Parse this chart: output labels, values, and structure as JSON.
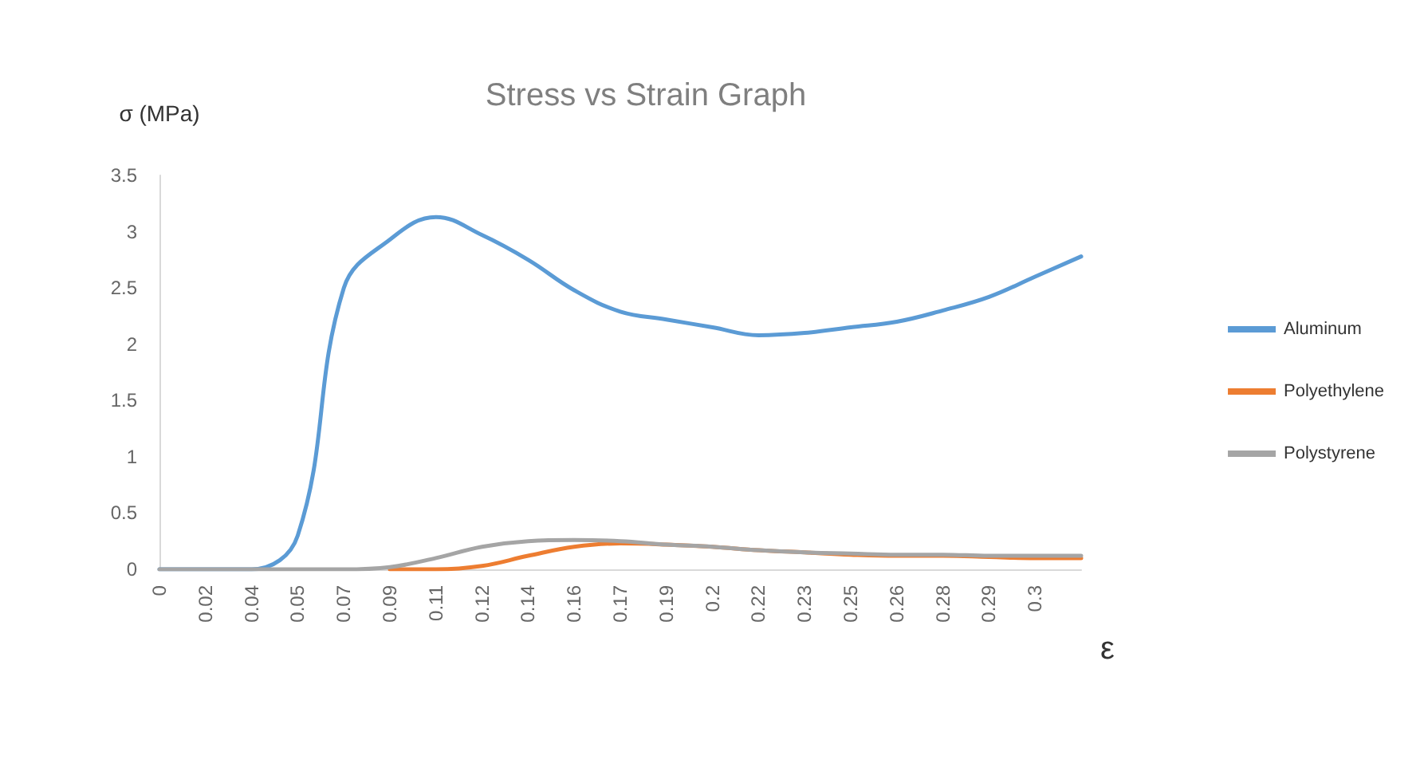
{
  "chart_data": {
    "type": "line",
    "title": "Stress vs Strain Graph",
    "ylabel": "σ (MPa)",
    "xlabel": "ε",
    "categories": [
      "0",
      "0.02",
      "0.04",
      "0.05",
      "0.07",
      "0.09",
      "0.11",
      "0.12",
      "0.14",
      "0.16",
      "0.17",
      "0.19",
      "0.2",
      "0.22",
      "0.23",
      "0.25",
      "0.26",
      "0.28",
      "0.29",
      "0.3",
      null
    ],
    "series": [
      {
        "name": "Aluminum",
        "color": "#5b9bd5",
        "values": [
          0,
          0,
          0,
          0.3,
          2.5,
          2.93,
          3.13,
          2.97,
          2.75,
          2.48,
          2.29,
          2.22,
          2.15,
          2.08,
          2.1,
          2.15,
          2.2,
          2.3,
          2.42,
          2.6,
          2.78
        ]
      },
      {
        "name": "Polyethylene",
        "color": "#ed7d31",
        "values": [
          null,
          null,
          null,
          null,
          null,
          0,
          0,
          0.03,
          0.12,
          0.2,
          0.23,
          0.22,
          0.2,
          0.17,
          0.15,
          0.13,
          0.12,
          0.12,
          0.11,
          0.1,
          0.1
        ]
      },
      {
        "name": "Polystyrene",
        "color": "#a5a5a5",
        "values": [
          0,
          0,
          0,
          0,
          0,
          0.02,
          0.1,
          0.2,
          0.25,
          0.26,
          0.25,
          0.22,
          0.2,
          0.17,
          0.15,
          0.14,
          0.13,
          0.13,
          0.12,
          0.12,
          0.12
        ]
      }
    ],
    "ylim": [
      0,
      3.5
    ],
    "yticks": [
      0,
      0.5,
      1,
      1.5,
      2,
      2.5,
      3,
      3.5
    ],
    "grid": false,
    "legend": "right",
    "marker": "none",
    "line_style": "solid"
  }
}
